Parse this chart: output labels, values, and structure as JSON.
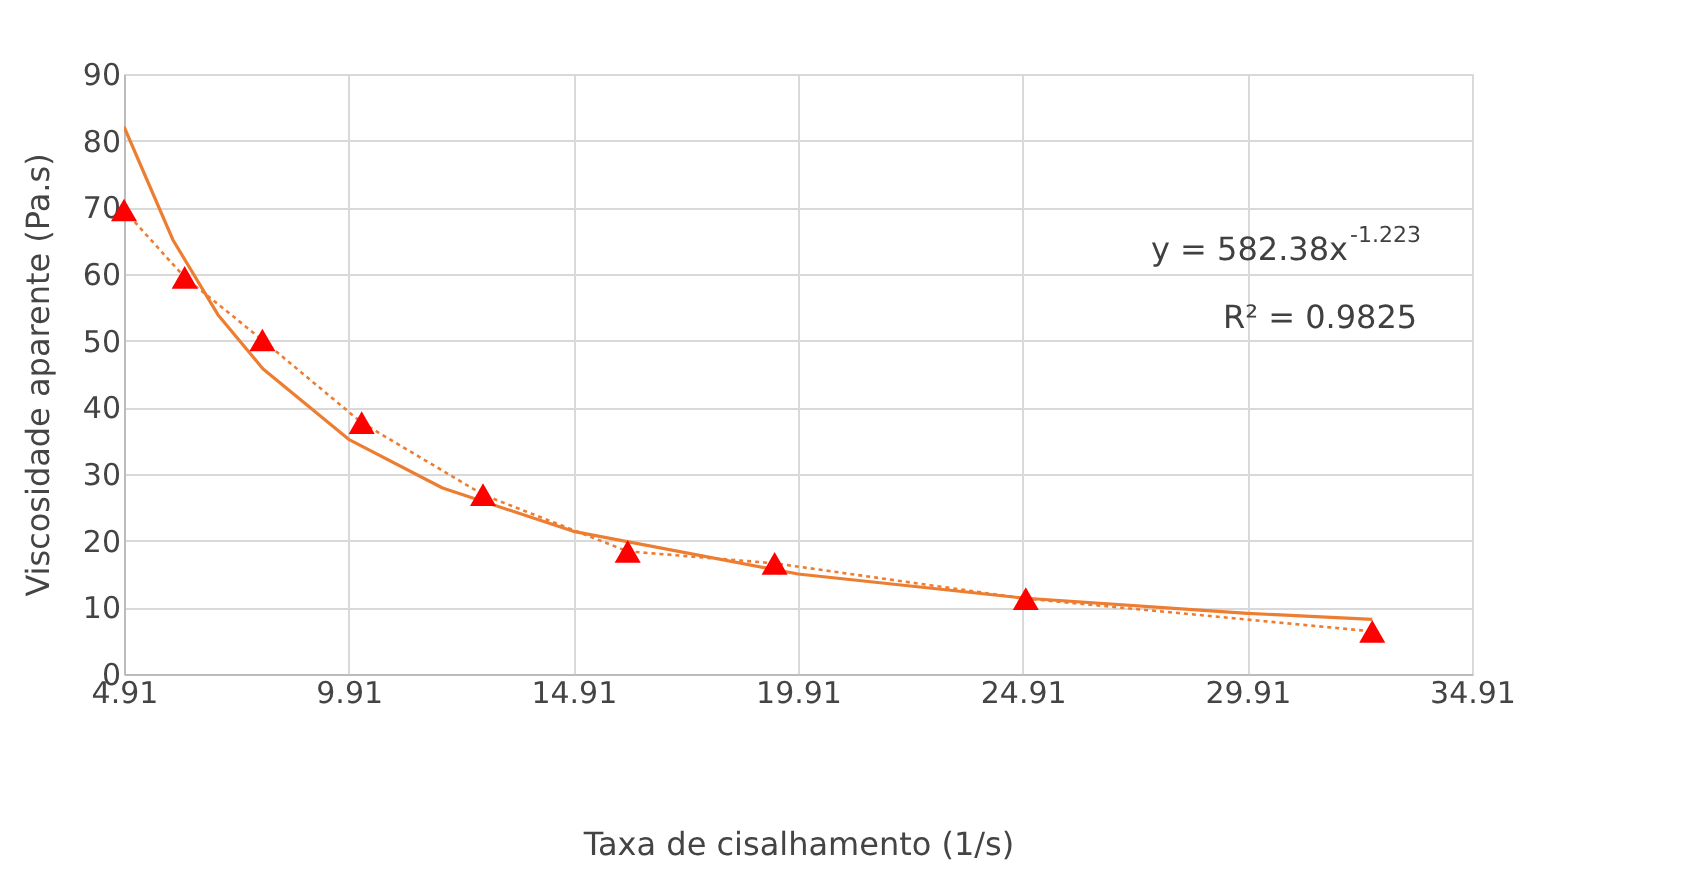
{
  "chart_data": {
    "type": "scatter",
    "xlabel": "Taxa de cisalhamento (1/s)",
    "ylabel": "Viscosidade aparente  (Pa.s)",
    "x": [
      4.91,
      6.26,
      7.99,
      10.2,
      12.9,
      16.12,
      19.39,
      24.98,
      32.69
    ],
    "series": [
      {
        "type": "line",
        "color": "#ed7d31",
        "line_style": "dotted",
        "marker": "none",
        "values": [
          69.6,
          59.5,
          50.1,
          37.7,
          26.9,
          18.4,
          16.6,
          11.3,
          6.4
        ]
      },
      {
        "type": "line",
        "color": "#ed7d31",
        "line_style": "solid",
        "marker": "none",
        "x": [
          4.91,
          6,
          7,
          8,
          9.91,
          12,
          14.91,
          19.91,
          24.91,
          29.91,
          32.69
        ],
        "values": [
          82.1,
          65.1,
          53.9,
          45.8,
          35.2,
          27.9,
          21.4,
          15.0,
          11.4,
          9.1,
          8.2
        ]
      },
      {
        "color": "#ff0000",
        "marker": "triangle",
        "values": [
          69.6,
          59.5,
          50.1,
          37.7,
          26.9,
          18.4,
          16.6,
          11.3,
          6.4
        ]
      }
    ],
    "annotations": [
      "y = 582.38x$^{-1.223}$",
      "R² = 0.9825"
    ],
    "xlim": [
      4.91,
      34.91
    ],
    "xticks": [
      4.91,
      9.91,
      14.91,
      19.91,
      24.91,
      29.91,
      34.91
    ],
    "ylim": [
      0,
      90
    ],
    "yticks": [
      0,
      10,
      20,
      30,
      40,
      50,
      60,
      70,
      80,
      90
    ],
    "grid": true
  }
}
